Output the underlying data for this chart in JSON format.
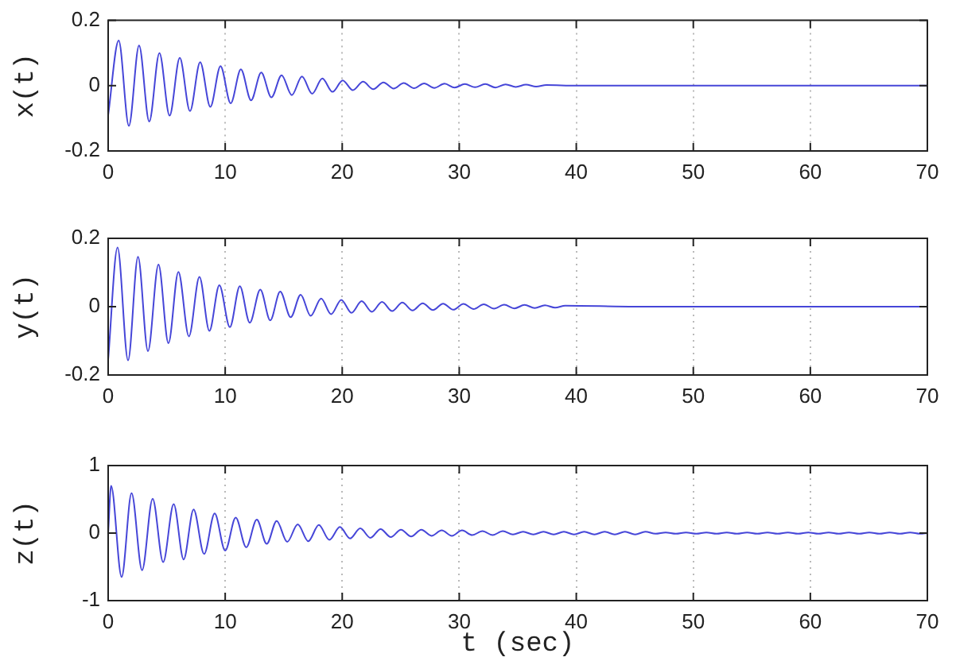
{
  "chart_data": [
    {
      "type": "line",
      "ylabel": "x(t)",
      "xlim": [
        0,
        70
      ],
      "xticks": [
        0,
        10,
        20,
        30,
        40,
        50,
        60,
        70
      ],
      "ylim": [
        -0.2,
        0.2
      ],
      "yticks": [
        -0.2,
        0,
        0.2
      ],
      "grid": "x",
      "marker": "none",
      "line_style": "solid",
      "series": [
        {
          "color": "#4646d8",
          "x": [
            0,
            0.9,
            1.77,
            2.64,
            3.51,
            4.38,
            5.25,
            6.12,
            6.99,
            7.86,
            8.73,
            9.6,
            10.47,
            11.34,
            12.21,
            13.08,
            13.95,
            14.82,
            15.69,
            16.56,
            17.43,
            18.3,
            19.17,
            20.04,
            20.91,
            21.78,
            22.65,
            23.52,
            24.39,
            25.26,
            26.13,
            27,
            27.87,
            28.74,
            29.61,
            30.48,
            31.35,
            32.22,
            33.09,
            33.96,
            34.83,
            35.7,
            36.57,
            37.44,
            40,
            70
          ],
          "values": [
            -0.09,
            0.138,
            -0.123,
            0.123,
            -0.11,
            0.1,
            -0.092,
            0.085,
            -0.078,
            0.072,
            -0.065,
            0.06,
            -0.054,
            0.05,
            -0.045,
            0.04,
            -0.036,
            0.032,
            -0.029,
            0.028,
            -0.025,
            0.022,
            -0.019,
            0.016,
            -0.014,
            0.012,
            -0.011,
            0.01,
            -0.009,
            0.008,
            -0.008,
            0.007,
            -0.007,
            0.006,
            -0.006,
            0.005,
            -0.005,
            0.005,
            -0.006,
            0.004,
            -0.004,
            0.003,
            -0.003,
            0.002,
            0,
            0
          ]
        }
      ]
    },
    {
      "type": "line",
      "ylabel": "y(t)",
      "xlim": [
        0,
        70
      ],
      "xticks": [
        0,
        10,
        20,
        30,
        40,
        50,
        60,
        70
      ],
      "ylim": [
        -0.2,
        0.2
      ],
      "yticks": [
        -0.2,
        0,
        0.2
      ],
      "grid": "x",
      "marker": "none",
      "line_style": "solid",
      "series": [
        {
          "color": "#4646d8",
          "x": [
            0,
            0.8,
            1.7,
            2.55,
            3.4,
            4.3,
            5.15,
            6,
            6.9,
            7.8,
            8.65,
            9.5,
            10.4,
            11.25,
            12.1,
            13,
            13.85,
            14.7,
            15.6,
            16.45,
            17.3,
            18.2,
            19.05,
            19.92,
            20.79,
            21.66,
            22.53,
            23.4,
            24.27,
            25.14,
            26.01,
            26.88,
            27.75,
            28.62,
            29.49,
            30.36,
            31.23,
            32.1,
            32.97,
            33.84,
            34.71,
            35.58,
            36.45,
            37.32,
            38.19,
            39.06,
            45,
            70
          ],
          "values": [
            -0.155,
            0.173,
            -0.157,
            0.146,
            -0.13,
            0.123,
            -0.107,
            0.102,
            -0.087,
            0.087,
            -0.071,
            0.063,
            -0.06,
            0.06,
            -0.047,
            0.05,
            -0.04,
            0.044,
            -0.031,
            0.035,
            -0.027,
            0.024,
            -0.022,
            0.02,
            -0.018,
            0.016,
            -0.015,
            0.014,
            -0.013,
            0.012,
            -0.011,
            0.01,
            -0.01,
            0.009,
            -0.009,
            0.008,
            -0.007,
            0.007,
            -0.006,
            0.006,
            -0.005,
            0.005,
            -0.004,
            0.004,
            -0.003,
            0.003,
            0,
            0
          ]
        }
      ]
    },
    {
      "type": "line",
      "ylabel": "z(t)",
      "xlabel": "t (sec)",
      "xlim": [
        0,
        70
      ],
      "xticks": [
        0,
        10,
        20,
        30,
        40,
        50,
        60,
        70
      ],
      "ylim": [
        -1,
        1
      ],
      "yticks": [
        -1,
        0,
        1
      ],
      "grid": "x",
      "marker": "none",
      "line_style": "solid",
      "series": [
        {
          "color": "#4646d8",
          "x": [
            0,
            0.25,
            1.15,
            2,
            2.9,
            3.8,
            4.7,
            5.6,
            6.45,
            7.3,
            8.2,
            9.1,
            10,
            10.9,
            11.8,
            12.7,
            13.55,
            14.4,
            15.3,
            16.2,
            17.1,
            18,
            18.9,
            19.8,
            20.67,
            21.54,
            22.41,
            23.28,
            24.15,
            25.02,
            25.89,
            26.76,
            27.63,
            28.5,
            29.37,
            30.24,
            31.11,
            31.98,
            32.85,
            33.72,
            34.59,
            35.46,
            36.33,
            37.2,
            38.07,
            38.94,
            39.81,
            40.68,
            41.55,
            42.42,
            43.29,
            44.16,
            45.03,
            45.9,
            46.77,
            47.64,
            48.51,
            49.38,
            50.25,
            51.12,
            51.99,
            52.86,
            53.73,
            54.6,
            55.47,
            56.34,
            57.21,
            58.08,
            58.95,
            59.82,
            60.69,
            61.56,
            62.43,
            63.3,
            64.17,
            65.04,
            65.91,
            66.78,
            67.65,
            68.52,
            69.39,
            70
          ],
          "values": [
            0,
            0.7,
            -0.65,
            0.59,
            -0.55,
            0.51,
            -0.43,
            0.43,
            -0.39,
            0.35,
            -0.31,
            0.29,
            -0.26,
            0.23,
            -0.21,
            0.2,
            -0.16,
            0.18,
            -0.13,
            0.13,
            -0.12,
            0.12,
            -0.1,
            0.09,
            -0.08,
            0.07,
            -0.07,
            0.06,
            -0.06,
            0.05,
            -0.05,
            0.05,
            -0.04,
            0.04,
            -0.04,
            0.04,
            -0.03,
            0.03,
            -0.03,
            0.03,
            -0.02,
            0.02,
            -0.02,
            0.02,
            -0.02,
            0.02,
            -0.02,
            0.02,
            -0.02,
            0.02,
            -0.02,
            0.02,
            -0.02,
            0.02,
            -0.01,
            0.01,
            -0.01,
            0.01,
            -0.01,
            0.01,
            -0.01,
            0.01,
            -0.01,
            0.01,
            -0.01,
            0.01,
            -0.01,
            0.01,
            -0.01,
            0.01,
            -0.01,
            0.01,
            -0.01,
            0.01,
            -0.01,
            0.01,
            -0.01,
            0.01,
            -0.01,
            0.01,
            -0.01,
            0
          ]
        }
      ]
    }
  ]
}
